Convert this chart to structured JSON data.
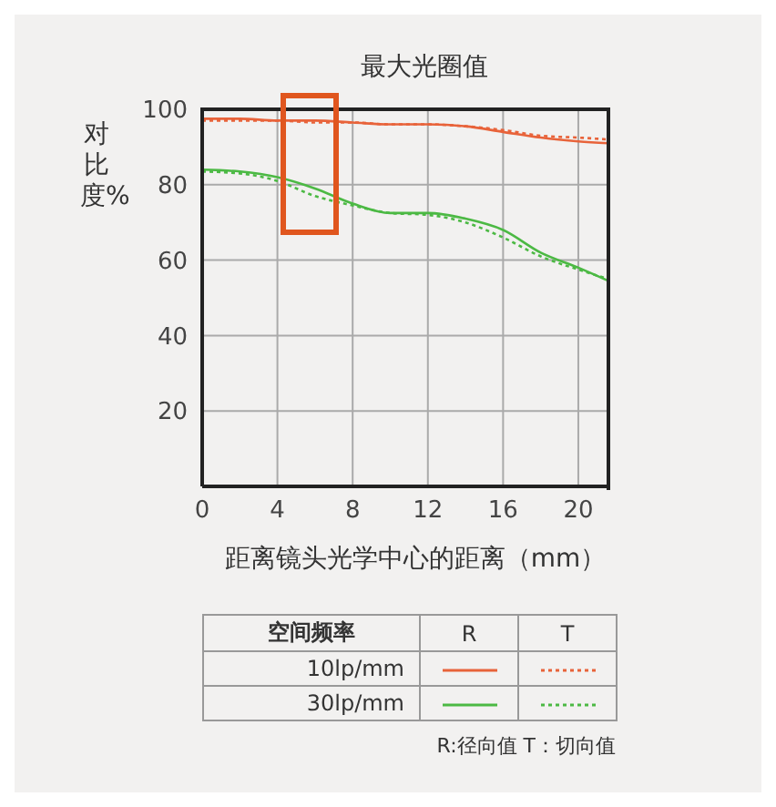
{
  "chart_data": {
    "type": "line",
    "title": "最大光圈值",
    "xlabel": "距离镜头光学中心的距离（mm）",
    "ylabel": "对比度%",
    "legend_title": "空间频率",
    "x": [
      0,
      2,
      4,
      6,
      8,
      10,
      12,
      14,
      16,
      18,
      20,
      21.6
    ],
    "series": [
      {
        "name": "10lp/mm",
        "color": "#e8633a",
        "line_style": "solid",
        "values": [
          97.5,
          97.5,
          97,
          97,
          96.5,
          96,
          96,
          95.5,
          94,
          92.5,
          91.5,
          91
        ]
      },
      {
        "color": "#e8633a",
        "line_style": "dotted",
        "values": [
          97,
          97,
          97,
          96.5,
          96.5,
          96,
          96,
          95.5,
          94.5,
          93,
          92.5,
          92
        ]
      },
      {
        "name": "30lp/mm",
        "color": "#4cb944",
        "line_style": "solid",
        "values": [
          84,
          83.5,
          82,
          79,
          75,
          72.5,
          72.5,
          71,
          68,
          62,
          58,
          54.5
        ]
      },
      {
        "color": "#4cb944",
        "line_style": "dotted",
        "values": [
          83.5,
          83,
          81,
          77,
          74.5,
          72.5,
          72,
          70,
          66,
          61,
          57.5,
          55
        ]
      }
    ],
    "xlim": [
      0,
      21.6
    ],
    "xticks": [
      0,
      4,
      8,
      12,
      16,
      20
    ],
    "ylim": [
      0,
      100
    ],
    "yticks": [
      {
        "value": 0,
        "label": null
      },
      20,
      40,
      60,
      80,
      100
    ],
    "grid": true,
    "legend": "bottom",
    "marker": "none",
    "annotations": [
      "R",
      "T",
      "R:径向值 T：切向值"
    ]
  }
}
